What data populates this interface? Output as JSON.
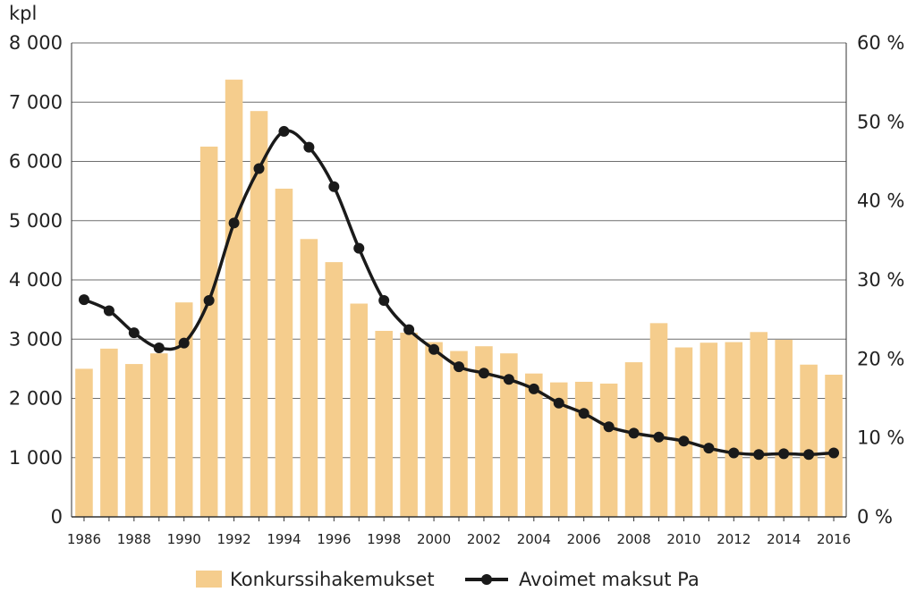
{
  "chart_data": {
    "type": "bar",
    "x": [
      "1986",
      "1987",
      "1988",
      "1989",
      "1990",
      "1991",
      "1992",
      "1993",
      "1994",
      "1995",
      "1996",
      "1997",
      "1998",
      "1999",
      "2000",
      "2001",
      "2002",
      "2003",
      "2004",
      "2005",
      "2006",
      "2007",
      "2008",
      "2009",
      "2010",
      "2011",
      "2012",
      "2013",
      "2014",
      "2015",
      "2016"
    ],
    "x_tick_labels": [
      "1986",
      "1988",
      "1990",
      "1992",
      "1994",
      "1996",
      "1998",
      "2000",
      "2002",
      "2004",
      "2006",
      "2008",
      "2010",
      "2012",
      "2014",
      "2016"
    ],
    "y_left_label": "kpl",
    "y_left_lim": [
      0,
      8000
    ],
    "y_left_ticks": [
      "0",
      "1 000",
      "2 000",
      "3 000",
      "4 000",
      "5 000",
      "6 000",
      "7 000",
      "8 000"
    ],
    "y_right_lim": [
      0,
      60
    ],
    "y_right_ticks": [
      "0 %",
      "10 %",
      "20 %",
      "30 %",
      "40 %",
      "50 %",
      "60 %"
    ],
    "grid": "horizontal",
    "legend_position": "bottom",
    "series": [
      {
        "name": "Konkurssihakemukset",
        "type": "bar",
        "axis": "left",
        "color": "#f5cd8d",
        "values": [
          2500,
          2840,
          2580,
          2760,
          3620,
          6250,
          7380,
          6850,
          5540,
          4690,
          4300,
          3600,
          3140,
          3110,
          2950,
          2800,
          2880,
          2760,
          2420,
          2270,
          2280,
          2250,
          2610,
          3270,
          2860,
          2940,
          2950,
          3120,
          2990,
          2570,
          2400
        ]
      },
      {
        "name": "Avoimet maksut Pa",
        "type": "line",
        "axis": "right",
        "color": "#1a1a1a",
        "values": [
          27.5,
          26.1,
          23.3,
          21.4,
          22.0,
          27.4,
          37.2,
          44.1,
          48.8,
          46.8,
          41.8,
          34.0,
          27.4,
          23.7,
          21.2,
          19.0,
          18.2,
          17.4,
          16.2,
          14.4,
          13.1,
          11.4,
          10.6,
          10.1,
          9.6,
          8.7,
          8.1,
          7.9,
          8.0,
          7.9,
          8.1
        ]
      }
    ]
  }
}
